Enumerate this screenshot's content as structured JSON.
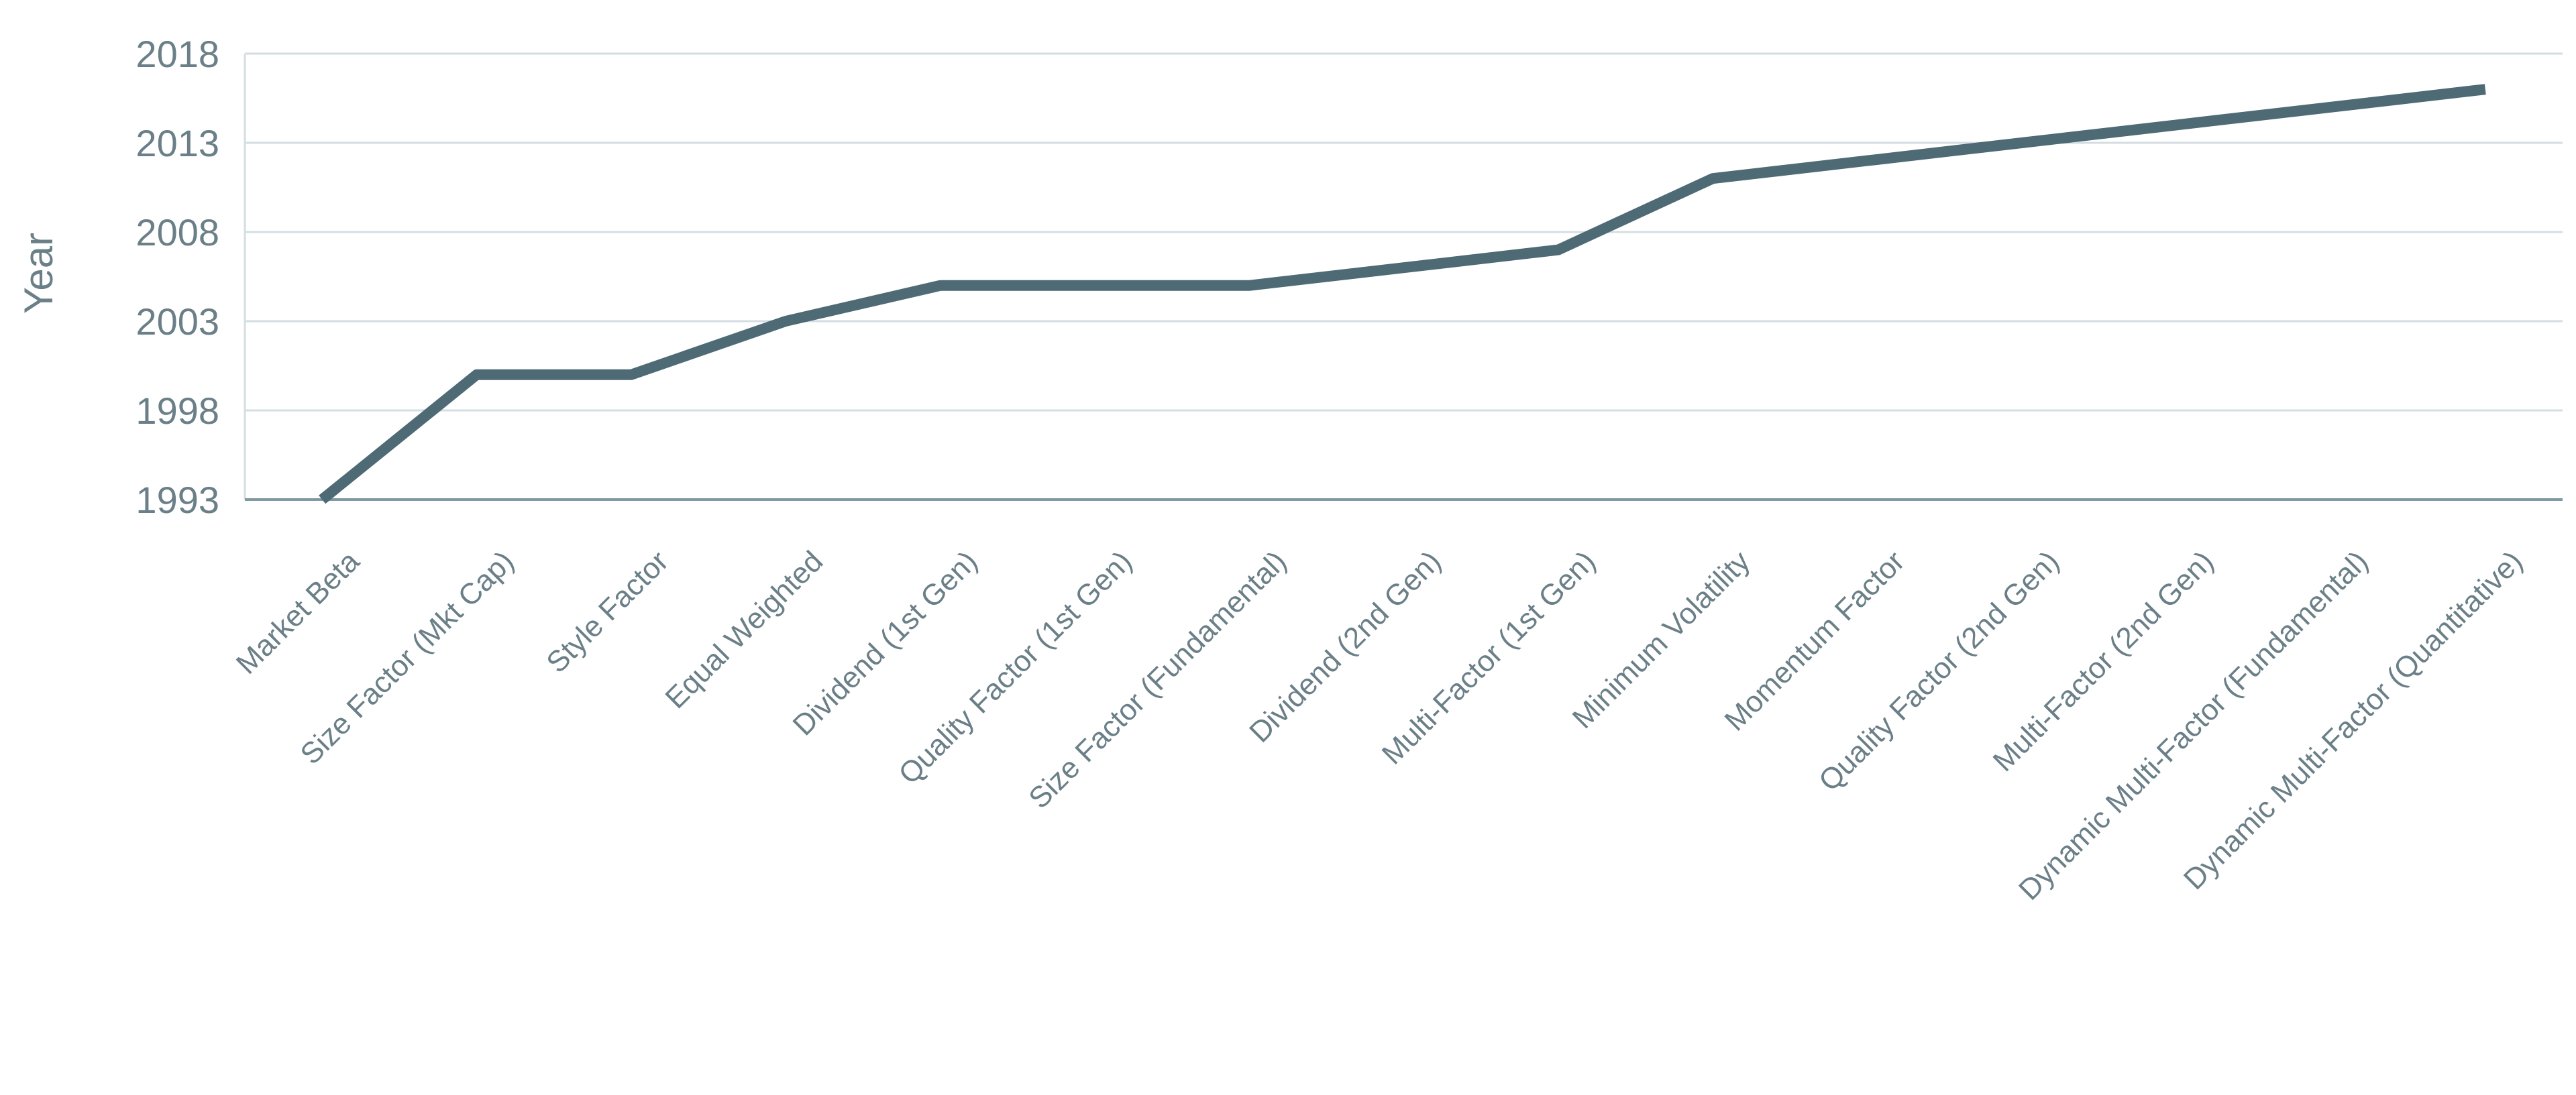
{
  "chart_data": {
    "type": "line",
    "title": "",
    "xlabel": "",
    "ylabel": "Year",
    "ylim": [
      1993,
      2018
    ],
    "yticks": [
      1993,
      1998,
      2003,
      2008,
      2013,
      2018
    ],
    "grid": true,
    "line_color": "#4d6a75",
    "categories": [
      "Market Beta",
      "Size Factor (Mkt Cap)",
      "Style Factor",
      "Equal Weighted",
      "Dividend (1st Gen)",
      "Quality Factor (1st Gen)",
      "Size Factor (Fundamental)",
      "Dividend (2nd Gen)",
      "Multi-Factor (1st Gen)",
      "Minimum Volatility",
      "Momentum Factor",
      "Quality Factor (2nd Gen)",
      "Multi-Factor (2nd Gen)",
      "Dynamic Multi-Factor (Fundamental)",
      "Dynamic Multi-Factor (Quantitative)"
    ],
    "series": [
      {
        "values": [
          1993,
          2000,
          2000,
          2003,
          2005,
          2005,
          2005,
          2006,
          2007,
          2011,
          2012,
          2013,
          2014,
          2015,
          2016
        ]
      }
    ]
  }
}
